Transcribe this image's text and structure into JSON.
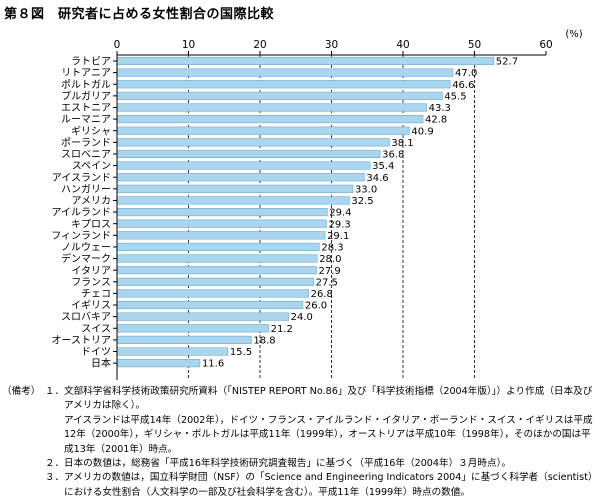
{
  "title": "第８図　研究者に占める女性割合の国際比較",
  "chart_data": {
    "type": "bar",
    "orientation": "horizontal",
    "unit_label": "(%)",
    "xlim": [
      0,
      60
    ],
    "x_ticks": [
      0,
      10,
      20,
      30,
      40,
      50,
      60
    ],
    "grid": "dashed vertical lines at 10-unit intervals",
    "categories": [
      "ラトビア",
      "リトアニア",
      "ポルトガル",
      "ブルガリア",
      "エストニア",
      "ルーマニア",
      "ギリシャ",
      "ポーランド",
      "スロベニア",
      "スペイン",
      "アイスランド",
      "ハンガリー",
      "アメリカ",
      "アイルランド",
      "キプロス",
      "フィンランド",
      "ノルウェー",
      "デンマーク",
      "イタリア",
      "フランス",
      "チェコ",
      "イギリス",
      "スロバキア",
      "スイス",
      "オーストリア",
      "ドイツ",
      "日本"
    ],
    "values": [
      52.7,
      47.0,
      46.6,
      45.5,
      43.3,
      42.8,
      40.9,
      38.1,
      36.8,
      35.4,
      34.6,
      33.0,
      32.5,
      29.4,
      29.3,
      29.1,
      28.3,
      28.0,
      27.9,
      27.5,
      26.8,
      26.0,
      24.0,
      21.2,
      18.8,
      15.5,
      11.6
    ],
    "value_labels": [
      "52.7",
      "47.0",
      "46.6",
      "45.5",
      "43.3",
      "42.8",
      "40.9",
      "38.1",
      "36.8",
      "35.4",
      "34.6",
      "33.0",
      "32.5",
      "29.4",
      "29.3",
      "29.1",
      "28.3",
      "28.0",
      "27.9",
      "27.5",
      "26.8",
      "26.0",
      "24.0",
      "21.2",
      "18.8",
      "15.5",
      "11.6"
    ],
    "bar_color": "#a9d6ee"
  },
  "notes": {
    "marker": "（備考）",
    "items": [
      {
        "num": "１．",
        "text": "文部科学省科学技術政策研究所資料（「NISTEP REPORT No.86」及び「科学技術指標（2004年版）」）より作成（日本及びアメリカは除く）。\nアイスランドは平成14年（2002年），ドイツ・フランス・アイルランド・イタリア・ポーランド・スイス・イギリスは平成12年（2000年），ギリシャ・ポルトガルは平成11年（1999年），オーストリアは平成10年（1998年），そのほかの国は平成13年（2001年）時点。"
      },
      {
        "num": "２．",
        "text": "日本の数値は，総務省「平成16年科学技術研究調査報告」に基づく（平成16年（2004年）３月時点）。"
      },
      {
        "num": "３．",
        "text": "アメリカの数値は，国立科学財団（NSF）の「Science and Engineering Indicators 2004」に基づく科学者（scientist）における女性割合（人文科学の一部及び社会科学を含む）。平成11年（1999年）時点の数値。"
      }
    ]
  }
}
